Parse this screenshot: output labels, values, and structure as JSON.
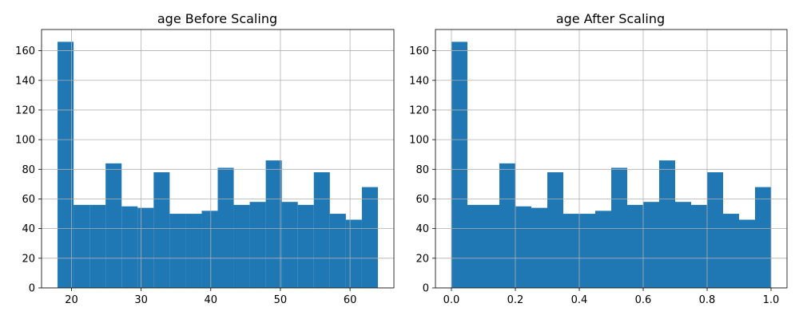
{
  "chart_data": [
    {
      "type": "bar",
      "title": "age Before Scaling",
      "xlabel": "",
      "ylabel": "",
      "bin_edges": [
        18.0,
        20.3,
        22.6,
        24.9,
        27.2,
        29.5,
        31.8,
        34.1,
        36.4,
        38.7,
        41.0,
        43.3,
        45.6,
        47.9,
        50.2,
        52.5,
        54.8,
        57.1,
        59.4,
        61.7,
        64.0
      ],
      "values": [
        166,
        56,
        56,
        84,
        55,
        54,
        78,
        50,
        50,
        52,
        81,
        56,
        58,
        86,
        58,
        56,
        78,
        50,
        46,
        68
      ],
      "xlim": [
        15.7,
        66.3
      ],
      "ylim": [
        0,
        174.3
      ],
      "xticks": [
        20,
        30,
        40,
        50,
        60
      ],
      "xtick_labels": [
        "20",
        "30",
        "40",
        "50",
        "60"
      ],
      "yticks": [
        0,
        20,
        40,
        60,
        80,
        100,
        120,
        140,
        160
      ],
      "ytick_labels": [
        "0",
        "20",
        "40",
        "60",
        "80",
        "100",
        "120",
        "140",
        "160"
      ],
      "grid": true,
      "bar_color": "#1f77b4"
    },
    {
      "type": "bar",
      "title": "age After Scaling",
      "xlabel": "",
      "ylabel": "",
      "bin_edges": [
        0.0,
        0.05,
        0.1,
        0.15,
        0.2,
        0.25,
        0.3,
        0.35,
        0.4,
        0.45,
        0.5,
        0.55,
        0.6,
        0.65,
        0.7,
        0.75,
        0.8,
        0.85,
        0.9,
        0.95,
        1.0
      ],
      "values": [
        166,
        56,
        56,
        84,
        55,
        54,
        78,
        50,
        50,
        52,
        81,
        56,
        58,
        86,
        58,
        56,
        78,
        50,
        46,
        68
      ],
      "xlim": [
        -0.05,
        1.05
      ],
      "ylim": [
        0,
        174.3
      ],
      "xticks": [
        0.0,
        0.2,
        0.4,
        0.6,
        0.8,
        1.0
      ],
      "xtick_labels": [
        "0.0",
        "0.2",
        "0.4",
        "0.6",
        "0.8",
        "1.0"
      ],
      "yticks": [
        0,
        20,
        40,
        60,
        80,
        100,
        120,
        140,
        160
      ],
      "ytick_labels": [
        "0",
        "20",
        "40",
        "60",
        "80",
        "100",
        "120",
        "140",
        "160"
      ],
      "grid": true,
      "bar_color": "#1f77b4"
    }
  ]
}
